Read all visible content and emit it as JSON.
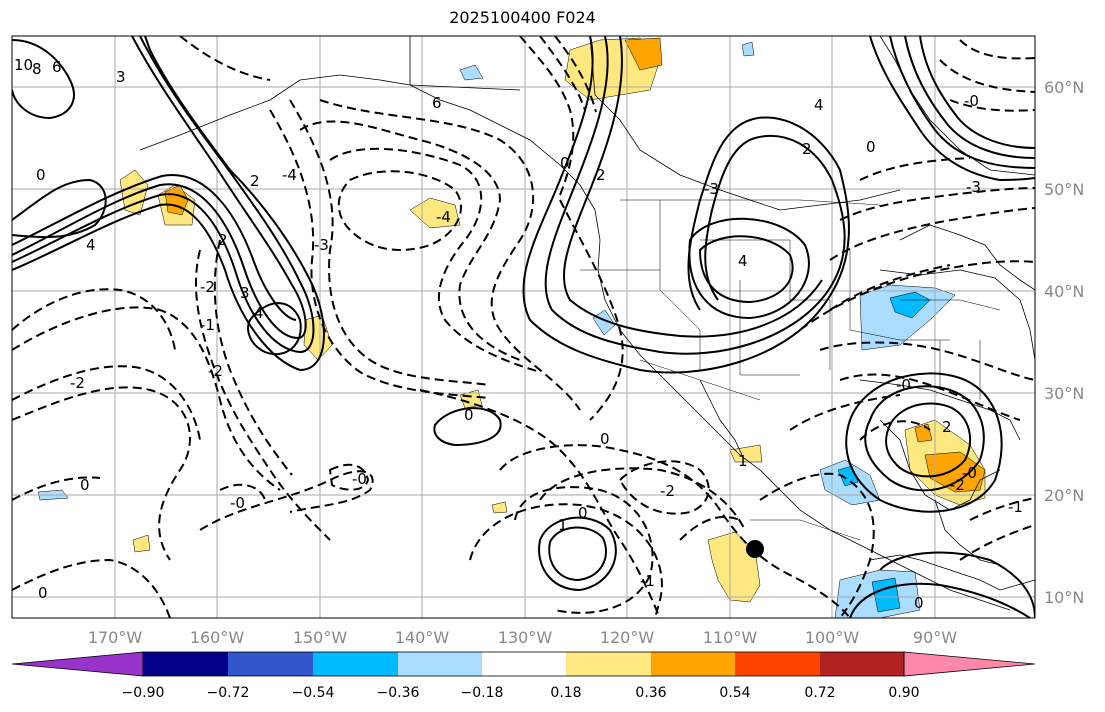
{
  "title": "2025100400 F024",
  "axes": {
    "lat_labels": [
      "60°N",
      "50°N",
      "40°N",
      "30°N",
      "20°N",
      "10°N"
    ],
    "lon_labels": [
      "170°W",
      "160°W",
      "150°W",
      "140°W",
      "130°W",
      "120°W",
      "110°W",
      "100°W",
      "90°W"
    ]
  },
  "colorbar": {
    "colors": [
      "#9933cc",
      "#000088",
      "#3355cc",
      "#00bbff",
      "#aaddff",
      "#ffffff",
      "#ffe880",
      "#ffa500",
      "#ff4400",
      "#b22222",
      "#ff88aa"
    ],
    "tick_labels": [
      "−0.90",
      "−0.72",
      "−0.54",
      "−0.36",
      "−0.18",
      "0.18",
      "0.36",
      "0.54",
      "0.72",
      "0.90"
    ]
  },
  "contour_labels": [
    "10",
    "8",
    "6",
    "3",
    "4",
    "-4",
    "6",
    "0",
    "4",
    "2",
    "0",
    "-3",
    "2",
    "2",
    "2",
    "-4",
    "-3",
    "-2",
    "4",
    "3",
    "4",
    "1",
    "-2",
    "-2",
    "-2",
    "-3",
    "0",
    "-0",
    "-0",
    "-0",
    "0",
    "-1",
    "0",
    "0",
    "-2",
    "1",
    "0",
    "-1",
    "2",
    "-0",
    "0",
    "0",
    "-1",
    "-0"
  ],
  "marker": "station-dot"
}
